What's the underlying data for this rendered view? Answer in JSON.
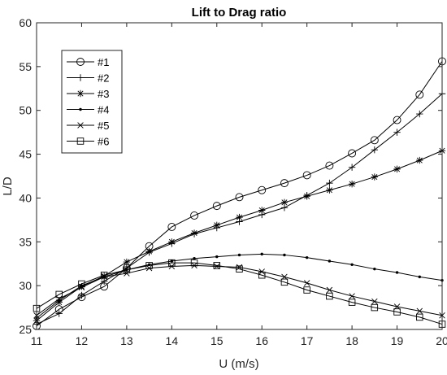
{
  "chart_data": {
    "type": "line",
    "title": "Lift to Drag ratio",
    "xlabel": "U (m/s)",
    "ylabel": "L/D",
    "xlim": [
      11,
      20
    ],
    "ylim": [
      25,
      60
    ],
    "xticks": [
      11,
      12,
      13,
      14,
      15,
      16,
      17,
      18,
      19,
      20
    ],
    "yticks": [
      25,
      30,
      35,
      40,
      45,
      50,
      55,
      60
    ],
    "grid": false,
    "legend_position": "top-left",
    "x": [
      11,
      11.5,
      12,
      12.5,
      13,
      13.5,
      14,
      14.5,
      15,
      15.5,
      16,
      16.5,
      17,
      17.5,
      18,
      18.5,
      19,
      19.5,
      20
    ],
    "series": [
      {
        "name": "#1",
        "marker": "circle",
        "values": [
          25.4,
          27.3,
          28.7,
          29.9,
          32.0,
          34.5,
          36.7,
          38.0,
          39.1,
          40.1,
          40.9,
          41.7,
          42.6,
          43.7,
          45.1,
          46.6,
          48.9,
          51.8,
          55.6
        ]
      },
      {
        "name": "#2",
        "marker": "plus",
        "values": [
          25.6,
          26.8,
          28.9,
          30.5,
          32.0,
          33.8,
          34.8,
          35.9,
          36.6,
          37.3,
          38.1,
          38.9,
          40.3,
          41.7,
          43.5,
          45.5,
          47.5,
          49.6,
          51.9
        ]
      },
      {
        "name": "#3",
        "marker": "asterisk",
        "values": [
          26.0,
          28.1,
          29.9,
          31.1,
          32.7,
          33.9,
          35.0,
          36.0,
          36.9,
          37.8,
          38.6,
          39.5,
          40.2,
          40.9,
          41.6,
          42.4,
          43.3,
          44.3,
          45.4
        ]
      },
      {
        "name": "#4",
        "marker": "dot",
        "values": [
          26.3,
          28.3,
          30.0,
          31.0,
          31.8,
          32.4,
          32.8,
          33.1,
          33.3,
          33.5,
          33.6,
          33.5,
          33.2,
          32.8,
          32.4,
          31.9,
          31.5,
          31.0,
          30.6
        ]
      },
      {
        "name": "#5",
        "marker": "x",
        "values": [
          26.6,
          28.5,
          29.8,
          31.0,
          31.4,
          32.0,
          32.2,
          32.3,
          32.2,
          32.1,
          31.6,
          31.0,
          30.3,
          29.5,
          28.8,
          28.2,
          27.6,
          27.1,
          26.6
        ]
      },
      {
        "name": "#6",
        "marker": "square",
        "values": [
          27.4,
          29.0,
          30.2,
          31.2,
          31.8,
          32.3,
          32.6,
          32.6,
          32.3,
          31.9,
          31.2,
          30.4,
          29.5,
          28.8,
          28.1,
          27.5,
          27.0,
          26.4,
          25.6
        ]
      }
    ]
  }
}
